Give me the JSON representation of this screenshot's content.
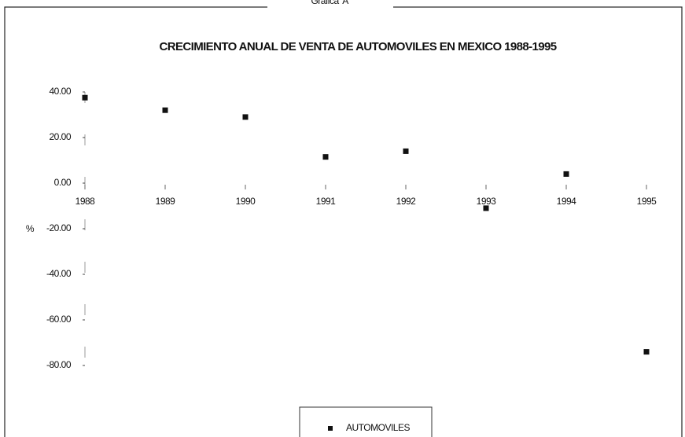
{
  "header": "Gráfica 'A'",
  "chart_data": {
    "type": "scatter",
    "title": "CRECIMIENTO ANUAL DE VENTA DE AUTOMOVILES EN MEXICO 1988-1995",
    "y_label": "%",
    "categories": [
      "1988",
      "1989",
      "1990",
      "1991",
      "1992",
      "1993",
      "1994",
      "1995"
    ],
    "series": [
      {
        "name": "AUTOMOVILES",
        "color": "#111111",
        "values": [
          37.5,
          32,
          29,
          11.5,
          14,
          -11,
          4,
          -74
        ]
      }
    ],
    "ylim": [
      -80,
      40
    ],
    "yticks": [
      {
        "value": 40,
        "label": "40.00"
      },
      {
        "value": 20,
        "label": "20.00"
      },
      {
        "value": 0,
        "label": "0.00"
      },
      {
        "value": -20,
        "label": "-20.00"
      },
      {
        "value": -40,
        "label": "-40.00"
      },
      {
        "value": -60,
        "label": "-60.00"
      },
      {
        "value": -80,
        "label": "-80.00"
      }
    ],
    "grid": false,
    "legend": "bottom"
  }
}
